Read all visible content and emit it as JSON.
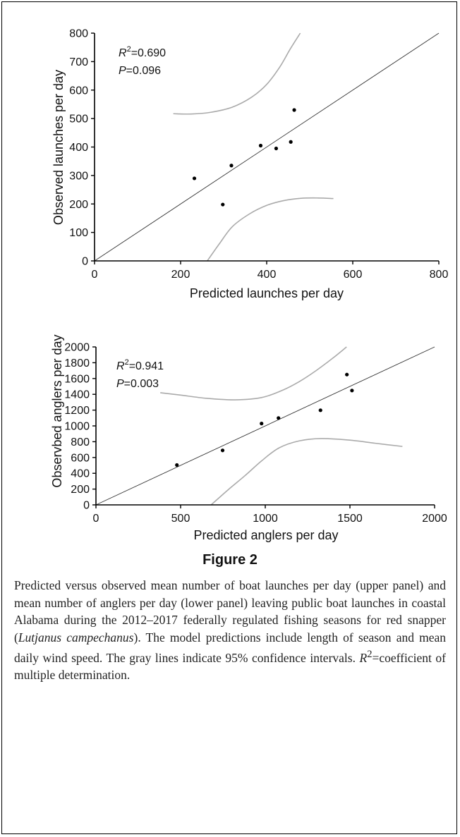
{
  "figure": {
    "title": "Figure 2",
    "caption": {
      "part1": "Predicted versus observed mean number of boat launches per day (upper panel) and mean number of anglers per day (lower panel) leaving public boat launches in coastal Alabama during the 2012–2017 federally regulated fishing seasons for red snapper (",
      "species": "Lutjanus campechanus",
      "part2": "). The model predictions include length of season and mean daily wind speed. The gray lines indicate 95% confidence intervals. ",
      "r2_symbol": "R",
      "r2_sup": "2",
      "part3": "=coefficient of multiple determination."
    }
  },
  "colors": {
    "points": "#000000",
    "ci": "#aaaaaa",
    "identity": "#333333",
    "axis": "#000000"
  },
  "chart_data": [
    {
      "type": "scatter",
      "panel": "upper",
      "xlabel": "Predicted launches per day",
      "ylabel": "Observed launches per day",
      "xlim": [
        0,
        800
      ],
      "ylim": [
        0,
        800
      ],
      "xticks": [
        0,
        200,
        400,
        600,
        800
      ],
      "yticks": [
        0,
        100,
        200,
        300,
        400,
        500,
        600,
        700,
        800
      ],
      "stats": {
        "r2_value": "=0.690",
        "p_value": "=0.096"
      },
      "points": [
        [
          232,
          290
        ],
        [
          298,
          198
        ],
        [
          318,
          335
        ],
        [
          386,
          405
        ],
        [
          422,
          395
        ],
        [
          456,
          418
        ],
        [
          464,
          530
        ]
      ],
      "identity_line": [
        [
          0,
          0
        ],
        [
          800,
          800
        ]
      ],
      "ci_upper": [
        [
          183,
          517
        ],
        [
          225,
          516
        ],
        [
          270,
          522
        ],
        [
          320,
          540
        ],
        [
          365,
          575
        ],
        [
          400,
          620
        ],
        [
          430,
          680
        ],
        [
          455,
          745
        ],
        [
          478,
          800
        ]
      ],
      "ci_lower": [
        [
          262,
          0
        ],
        [
          290,
          60
        ],
        [
          320,
          120
        ],
        [
          360,
          165
        ],
        [
          400,
          195
        ],
        [
          440,
          212
        ],
        [
          480,
          220
        ],
        [
          520,
          221
        ],
        [
          555,
          219
        ]
      ]
    },
    {
      "type": "scatter",
      "panel": "lower",
      "xlabel": "Predicted anglers per day",
      "ylabel": "Observbed anglers per day",
      "xlim": [
        0,
        2000
      ],
      "ylim": [
        0,
        2000
      ],
      "xticks": [
        0,
        500,
        1000,
        1500,
        2000
      ],
      "yticks": [
        0,
        200,
        400,
        600,
        800,
        1000,
        1200,
        1400,
        1600,
        1800,
        2000
      ],
      "stats": {
        "r2_value": "=0.941",
        "p_value": "=0.003"
      },
      "points": [
        [
          478,
          505
        ],
        [
          748,
          690
        ],
        [
          978,
          1030
        ],
        [
          1078,
          1100
        ],
        [
          1326,
          1198
        ],
        [
          1482,
          1650
        ],
        [
          1512,
          1448
        ]
      ],
      "identity_line": [
        [
          0,
          0
        ],
        [
          2000,
          2000
        ]
      ],
      "ci_upper": [
        [
          380,
          1420
        ],
        [
          500,
          1390
        ],
        [
          650,
          1350
        ],
        [
          820,
          1330
        ],
        [
          980,
          1360
        ],
        [
          1100,
          1450
        ],
        [
          1200,
          1560
        ],
        [
          1300,
          1700
        ],
        [
          1400,
          1860
        ],
        [
          1480,
          2000
        ]
      ],
      "ci_lower": [
        [
          680,
          0
        ],
        [
          780,
          190
        ],
        [
          880,
          370
        ],
        [
          980,
          560
        ],
        [
          1080,
          720
        ],
        [
          1200,
          810
        ],
        [
          1330,
          840
        ],
        [
          1500,
          820
        ],
        [
          1650,
          780
        ],
        [
          1810,
          740
        ]
      ]
    }
  ]
}
